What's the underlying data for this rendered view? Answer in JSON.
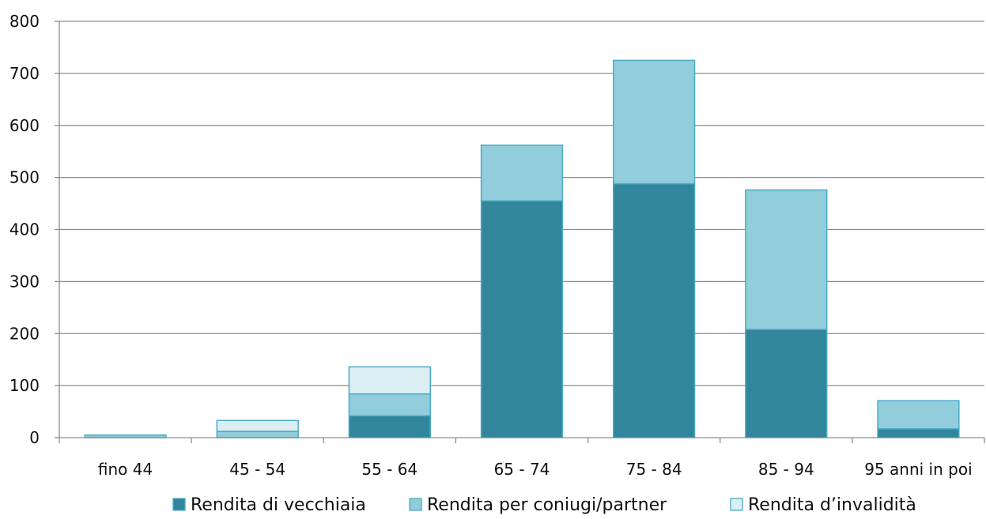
{
  "chart_data": {
    "type": "bar",
    "stacked": true,
    "categories": [
      "fino 44",
      "45 - 54",
      "55 - 64",
      "65 - 74",
      "75 - 84",
      "85 - 94",
      "95 anni in poi"
    ],
    "series": [
      {
        "name": "Rendita di vecchiaia",
        "color": "#31869b",
        "values": [
          0,
          0,
          42,
          455,
          488,
          208,
          17
        ]
      },
      {
        "name": "Rendita per coniugi/partner",
        "color": "#92cddc",
        "values": [
          5,
          12,
          42,
          107,
          237,
          268,
          54
        ]
      },
      {
        "name": "Rendita d’invalidità",
        "color": "#daeef3",
        "values": [
          0,
          21,
          52,
          0,
          0,
          0,
          0
        ]
      }
    ],
    "yticks": [
      "0",
      "100",
      "200",
      "300",
      "400",
      "500",
      "600",
      "700",
      "800"
    ],
    "ylim": [
      0,
      800
    ],
    "grid": true,
    "legend": "bottom"
  }
}
